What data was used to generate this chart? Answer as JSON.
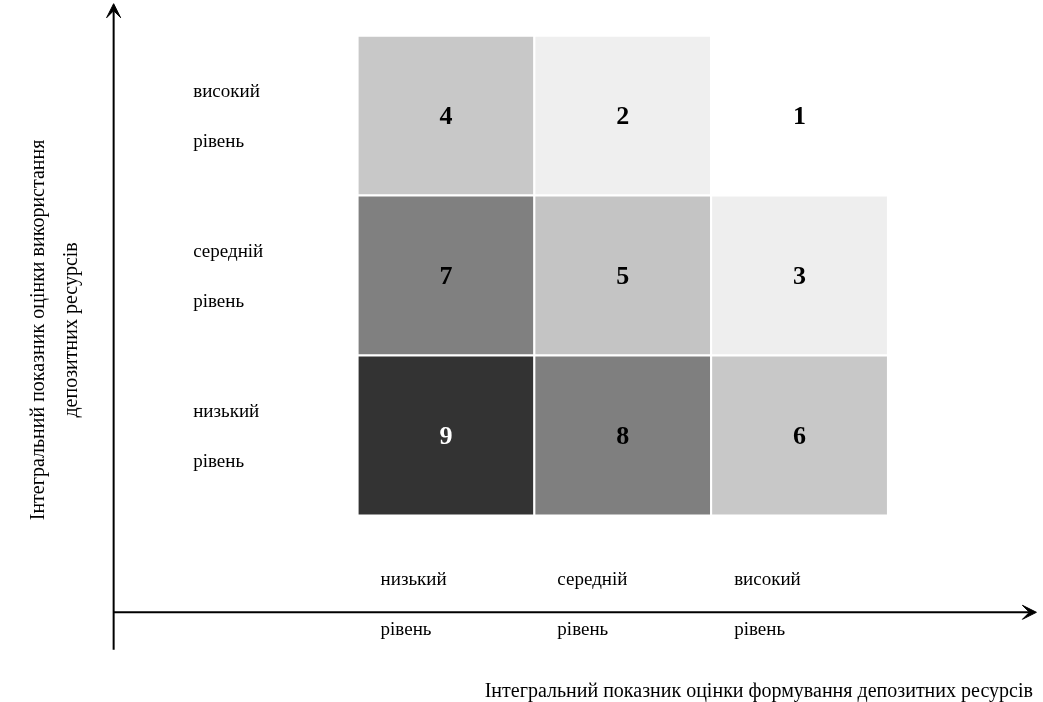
{
  "chart_data": {
    "type": "heatmap",
    "annotations": [
      "Інтегральний показник оцінки формування депозитних ресурсів",
      "Інтегральний показник оцінки використання депозитних ресурсів"
    ],
    "categories": [
      "низький рівень",
      "середній рівень",
      "високий рівень"
    ],
    "y_categories": [
      "високий рівень",
      "середній рівень",
      "низький рівень"
    ],
    "cells": [
      [
        4,
        2,
        1
      ],
      [
        7,
        5,
        3
      ],
      [
        9,
        8,
        6
      ]
    ],
    "colors": [
      [
        "#c8c8c8",
        "#efefef",
        "#ffffff"
      ],
      [
        "#808080",
        "#c4c4c4",
        "#eeeeee"
      ],
      [
        "#333333",
        "#7f7f7f",
        "#c8c8c8"
      ]
    ],
    "data_labels": true
  }
}
